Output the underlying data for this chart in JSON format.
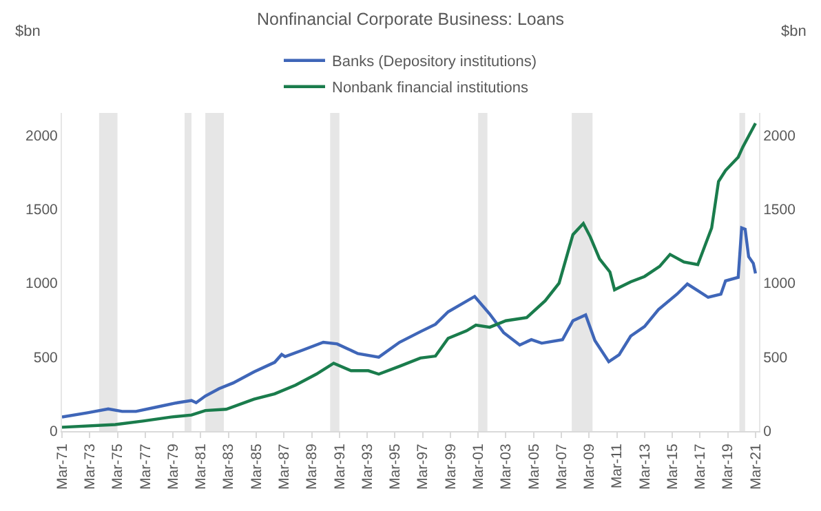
{
  "chart_data": {
    "type": "line",
    "title": "Nonfinancial Corporate Business: Loans",
    "ylabel": "$bn",
    "y2label": "$bn",
    "legend": "top",
    "grid": false,
    "marker": "none",
    "line_style": "solid",
    "xlim": [
      "1971-03",
      "2021-06"
    ],
    "xticks": [
      {
        "value": "1971-03",
        "label": "Mar-71"
      },
      {
        "value": "1973-03",
        "label": "Mar-73"
      },
      {
        "value": "1975-03",
        "label": "Mar-75"
      },
      {
        "value": "1977-03",
        "label": "Mar-77"
      },
      {
        "value": "1979-03",
        "label": "Mar-79"
      },
      {
        "value": "1981-03",
        "label": "Mar-81"
      },
      {
        "value": "1983-03",
        "label": "Mar-83"
      },
      {
        "value": "1985-03",
        "label": "Mar-85"
      },
      {
        "value": "1987-03",
        "label": "Mar-87"
      },
      {
        "value": "1989-03",
        "label": "Mar-89"
      },
      {
        "value": "1991-03",
        "label": "Mar-91"
      },
      {
        "value": "1993-03",
        "label": "Mar-93"
      },
      {
        "value": "1995-03",
        "label": "Mar-95"
      },
      {
        "value": "1997-03",
        "label": "Mar-97"
      },
      {
        "value": "1999-03",
        "label": "Mar-99"
      },
      {
        "value": "2001-03",
        "label": "Mar-01"
      },
      {
        "value": "2003-03",
        "label": "Mar-03"
      },
      {
        "value": "2005-03",
        "label": "Mar-05"
      },
      {
        "value": "2007-03",
        "label": "Mar-07"
      },
      {
        "value": "2009-03",
        "label": "Mar-09"
      },
      {
        "value": "2011-03",
        "label": "Mar-11"
      },
      {
        "value": "2013-03",
        "label": "Mar-13"
      },
      {
        "value": "2015-03",
        "label": "Mar-15"
      },
      {
        "value": "2017-03",
        "label": "Mar-17"
      },
      {
        "value": "2019-03",
        "label": "Mar-19"
      },
      {
        "value": "2021-03",
        "label": "Mar-21"
      }
    ],
    "ylim": [
      0,
      2150
    ],
    "yticks": [
      0,
      500,
      1000,
      1500,
      2000
    ],
    "y2lim": [
      0,
      2150
    ],
    "y2ticks": [
      0,
      500,
      1000,
      1500,
      2000
    ],
    "bands": [
      {
        "axis": "x",
        "from": "1973-11",
        "to": "1975-03",
        "color": "#e6e6e6"
      },
      {
        "axis": "x",
        "from": "1980-01",
        "to": "1980-07",
        "color": "#e6e6e6"
      },
      {
        "axis": "x",
        "from": "1981-07",
        "to": "1982-11",
        "color": "#e6e6e6"
      },
      {
        "axis": "x",
        "from": "1990-07",
        "to": "1991-03",
        "color": "#e6e6e6"
      },
      {
        "axis": "x",
        "from": "2001-03",
        "to": "2001-11",
        "color": "#e6e6e6"
      },
      {
        "axis": "x",
        "from": "2007-12",
        "to": "2009-06",
        "color": "#e6e6e6"
      },
      {
        "axis": "x",
        "from": "2020-01",
        "to": "2020-06",
        "color": "#e6e6e6"
      }
    ],
    "series": [
      {
        "name": "Banks (Depository institutions)",
        "color": "#3f66b8",
        "x": [
          "1971-03",
          "1973-01",
          "1974-07",
          "1975-07",
          "1976-07",
          "1978-01",
          "1979-07",
          "1980-07",
          "1980-11",
          "1981-07",
          "1982-07",
          "1983-07",
          "1985-01",
          "1986-07",
          "1987-01",
          "1987-04",
          "1988-07",
          "1990-01",
          "1991-01",
          "1992-07",
          "1994-01",
          "1995-07",
          "1997-01",
          "1998-02",
          "1999-01",
          "2000-12",
          "2002-01",
          "2003-01",
          "2004-03",
          "2005-01",
          "2005-10",
          "2007-04",
          "2008-01",
          "2008-12",
          "2009-08",
          "2010-08",
          "2011-05",
          "2012-03",
          "2013-03",
          "2014-03",
          "2015-07",
          "2016-04",
          "2017-10",
          "2018-09",
          "2019-01",
          "2019-12",
          "2020-03",
          "2020-06",
          "2020-09",
          "2021-01",
          "2021-03"
        ],
        "values": [
          95,
          124,
          150,
          133,
          133,
          163,
          192,
          207,
          192,
          237,
          287,
          325,
          400,
          465,
          518,
          503,
          547,
          600,
          589,
          524,
          500,
          600,
          672,
          722,
          806,
          910,
          791,
          666,
          582,
          618,
          594,
          618,
          746,
          785,
          612,
          469,
          516,
          642,
          707,
          821,
          925,
          994,
          904,
          925,
          1015,
          1039,
          1373,
          1364,
          1179,
          1134,
          1066
        ]
      },
      {
        "name": "Nonbank financial institutions",
        "color": "#1a7c4c",
        "x": [
          "1971-03",
          "1975-01",
          "1977-01",
          "1979-01",
          "1980-07",
          "1981-07",
          "1983-01",
          "1985-01",
          "1986-07",
          "1988-01",
          "1989-07",
          "1990-10",
          "1992-01",
          "1993-04",
          "1994-01",
          "1995-07",
          "1997-01",
          "1998-02",
          "1999-01",
          "2000-05",
          "2001-01",
          "2002-01",
          "2003-03",
          "2004-09",
          "2006-01",
          "2007-01",
          "2008-01",
          "2008-10",
          "2009-04",
          "2009-12",
          "2010-09",
          "2011-01",
          "2012-03",
          "2013-03",
          "2014-04",
          "2015-01",
          "2016-01",
          "2017-01",
          "2017-08",
          "2018-01",
          "2018-07",
          "2019-01",
          "2019-12",
          "2020-04",
          "2021-03"
        ],
        "values": [
          26,
          44,
          68,
          95,
          109,
          139,
          148,
          216,
          252,
          311,
          385,
          459,
          408,
          408,
          385,
          438,
          494,
          507,
          627,
          678,
          716,
          702,
          746,
          767,
          881,
          1000,
          1328,
          1403,
          1313,
          1164,
          1075,
          955,
          1009,
          1045,
          1113,
          1194,
          1143,
          1125,
          1269,
          1373,
          1687,
          1761,
          1851,
          1920,
          2080
        ]
      }
    ]
  }
}
